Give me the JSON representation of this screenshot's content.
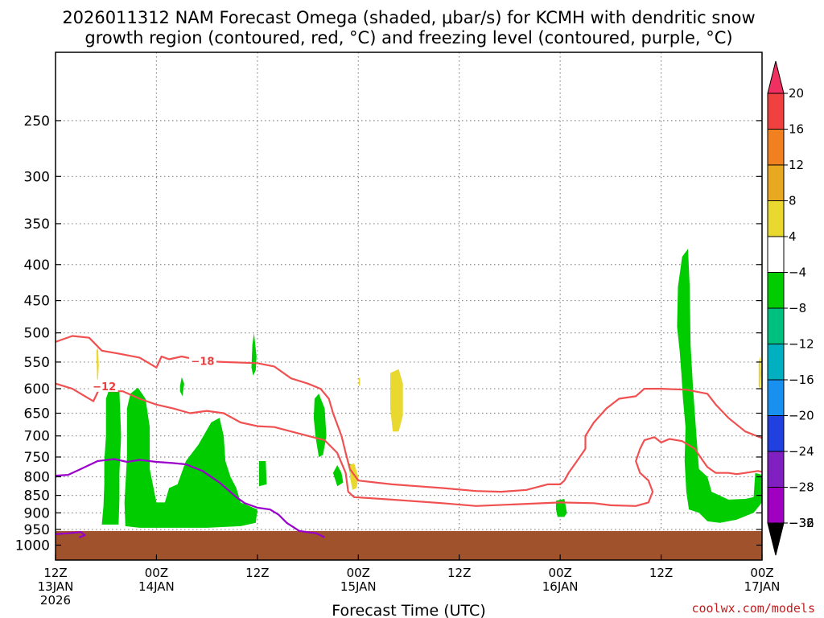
{
  "title": {
    "line1": "2026011312 NAM Forecast Omega (shaded, μbar/s) for KCMH with dendritic snow",
    "line2": "growth region (contoured, red, °C) and freezing level (contoured, purple, °C)"
  },
  "credit": "coolwx.com/models",
  "colors": {
    "omega_up": "#00cc00",
    "omega_down": "#e8d830",
    "dgz": "#f05050",
    "freezing": "#9a00cc",
    "ground": "#a0522d",
    "grid": "#888888"
  },
  "chart_data": {
    "type": "heatmap",
    "xlabel": "Forecast Time (UTC)",
    "ylabel": "",
    "x_range_hours": [
      0,
      84
    ],
    "y_range_hPa": [
      1050,
      200
    ],
    "y_ticks": [
      {
        "v": 250,
        "label": "250"
      },
      {
        "v": 300,
        "label": "300"
      },
      {
        "v": 350,
        "label": "350"
      },
      {
        "v": 400,
        "label": "400"
      },
      {
        "v": 450,
        "label": "450"
      },
      {
        "v": 500,
        "label": "500"
      },
      {
        "v": 550,
        "label": "550"
      },
      {
        "v": 600,
        "label": "600"
      },
      {
        "v": 650,
        "label": "650"
      },
      {
        "v": 700,
        "label": "700"
      },
      {
        "v": 750,
        "label": "750"
      },
      {
        "v": 800,
        "label": "800"
      },
      {
        "v": 850,
        "label": "850"
      },
      {
        "v": 900,
        "label": "900"
      },
      {
        "v": 950,
        "label": "950"
      },
      {
        "v": 1000,
        "label": "1000"
      }
    ],
    "x_ticks": [
      {
        "h": 0,
        "l1": "12Z",
        "l2": "13JAN",
        "l3": "2026"
      },
      {
        "h": 12,
        "l1": "00Z",
        "l2": "14JAN",
        "l3": ""
      },
      {
        "h": 24,
        "l1": "12Z",
        "l2": "",
        "l3": ""
      },
      {
        "h": 36,
        "l1": "00Z",
        "l2": "15JAN",
        "l3": ""
      },
      {
        "h": 48,
        "l1": "12Z",
        "l2": "",
        "l3": ""
      },
      {
        "h": 60,
        "l1": "00Z",
        "l2": "16JAN",
        "l3": ""
      },
      {
        "h": 72,
        "l1": "12Z",
        "l2": "",
        "l3": ""
      },
      {
        "h": 84,
        "l1": "00Z",
        "l2": "17JAN",
        "l3": ""
      }
    ],
    "colorbar": [
      {
        "label": "20",
        "color": "#f03060"
      },
      {
        "label": "16",
        "color": "#f04040"
      },
      {
        "label": "12",
        "color": "#f08020"
      },
      {
        "label": "8",
        "color": "#e8a820"
      },
      {
        "label": "4",
        "color": "#e8d830"
      },
      {
        "label": "−4",
        "color": "#ffffff"
      },
      {
        "label": "−8",
        "color": "#00cc00"
      },
      {
        "label": "−12",
        "color": "#00c080"
      },
      {
        "label": "−16",
        "color": "#00b0c0"
      },
      {
        "label": "−20",
        "color": "#1890f0"
      },
      {
        "label": "−24",
        "color": "#2040e0"
      },
      {
        "label": "−28",
        "color": "#8020c0"
      },
      {
        "label": "−32",
        "color": "#a000c0"
      },
      {
        "label": "−36",
        "color": "#a0a0a0"
      }
    ],
    "omega_regions": [
      {
        "value": -5,
        "points": [
          [
            5.5,
            935
          ],
          [
            5.7,
            880
          ],
          [
            5.8,
            820
          ],
          [
            5.8,
            760
          ],
          [
            6.0,
            700
          ],
          [
            6.0,
            620
          ],
          [
            6.4,
            600
          ],
          [
            7.6,
            605
          ],
          [
            7.8,
            700
          ],
          [
            7.6,
            790
          ],
          [
            7.6,
            860
          ],
          [
            7.5,
            935
          ]
        ]
      },
      {
        "value": -5,
        "points": [
          [
            8.3,
            940
          ],
          [
            8.2,
            870
          ],
          [
            8.5,
            750
          ],
          [
            8.5,
            640
          ],
          [
            8.9,
            610
          ],
          [
            9.8,
            598
          ],
          [
            10.7,
            620
          ],
          [
            11.2,
            680
          ],
          [
            11.2,
            780
          ],
          [
            12.0,
            870
          ],
          [
            13.0,
            870
          ],
          [
            13.5,
            830
          ],
          [
            14.5,
            820
          ],
          [
            15.5,
            760
          ],
          [
            17.0,
            720
          ],
          [
            18.5,
            670
          ],
          [
            19.5,
            660
          ],
          [
            20.0,
            700
          ],
          [
            20.2,
            760
          ],
          [
            20.8,
            800
          ],
          [
            21.5,
            830
          ],
          [
            22.0,
            870
          ],
          [
            24.0,
            890
          ],
          [
            23.8,
            930
          ],
          [
            22.0,
            940
          ],
          [
            18.0,
            945
          ],
          [
            14.0,
            945
          ],
          [
            10.0,
            945
          ]
        ]
      },
      {
        "value": -5,
        "points": [
          [
            14.8,
            595
          ],
          [
            15.0,
            578
          ],
          [
            15.3,
            590
          ],
          [
            15.1,
            615
          ],
          [
            14.8,
            605
          ]
        ]
      },
      {
        "value": -5,
        "points": [
          [
            23.3,
            560
          ],
          [
            23.4,
            520
          ],
          [
            23.6,
            500
          ],
          [
            23.9,
            540
          ],
          [
            23.8,
            565
          ],
          [
            23.5,
            575
          ]
        ]
      },
      {
        "value": -5,
        "points": [
          [
            24.2,
            760
          ],
          [
            25.0,
            760
          ],
          [
            25.1,
            820
          ],
          [
            24.2,
            825
          ]
        ]
      },
      {
        "value": -5,
        "points": [
          [
            30.8,
            620
          ],
          [
            31.3,
            610
          ],
          [
            32.0,
            640
          ],
          [
            32.2,
            700
          ],
          [
            31.8,
            745
          ],
          [
            31.3,
            750
          ],
          [
            30.9,
            700
          ],
          [
            30.7,
            660
          ]
        ]
      },
      {
        "value": -5,
        "points": [
          [
            33.0,
            790
          ],
          [
            33.5,
            770
          ],
          [
            34.0,
            790
          ],
          [
            34.2,
            815
          ],
          [
            33.5,
            825
          ]
        ]
      },
      {
        "value": -5,
        "points": [
          [
            34.8,
            765
          ],
          [
            35.3,
            770
          ],
          [
            35.0,
            790
          ]
        ]
      },
      {
        "value": -5,
        "points": [
          [
            59.5,
            865
          ],
          [
            60.5,
            860
          ],
          [
            60.8,
            900
          ],
          [
            60.5,
            912
          ],
          [
            59.7,
            912
          ],
          [
            59.5,
            890
          ]
        ]
      },
      {
        "value": -5,
        "points": [
          [
            73.9,
            490
          ],
          [
            74.0,
            430
          ],
          [
            74.5,
            390
          ],
          [
            75.2,
            380
          ],
          [
            75.4,
            430
          ],
          [
            75.5,
            520
          ],
          [
            75.8,
            600
          ],
          [
            76.2,
            700
          ],
          [
            76.5,
            780
          ],
          [
            77.5,
            800
          ],
          [
            78.0,
            840
          ],
          [
            80,
            862
          ],
          [
            82,
            860
          ],
          [
            83,
            855
          ],
          [
            83.2,
            790
          ],
          [
            84,
            795
          ],
          [
            84,
            870
          ],
          [
            83,
            900
          ],
          [
            81,
            920
          ],
          [
            79,
            930
          ],
          [
            77.5,
            925
          ],
          [
            76.5,
            900
          ],
          [
            75.3,
            890
          ],
          [
            75.0,
            840
          ],
          [
            74.8,
            760
          ],
          [
            74.9,
            680
          ],
          [
            74.6,
            620
          ],
          [
            74.4,
            570
          ],
          [
            74.2,
            530
          ]
        ]
      },
      {
        "value": 5,
        "points": [
          [
            4.85,
            530
          ],
          [
            5.05,
            525
          ],
          [
            5.15,
            555
          ],
          [
            5.05,
            582
          ],
          [
            4.95,
            582
          ]
        ]
      },
      {
        "value": 5,
        "points": [
          [
            39.8,
            570
          ],
          [
            40.8,
            563
          ],
          [
            41.3,
            590
          ],
          [
            41.3,
            655
          ],
          [
            40.8,
            690
          ],
          [
            40.1,
            690
          ],
          [
            39.8,
            640
          ]
        ]
      },
      {
        "value": 5,
        "points": [
          [
            35.0,
            770
          ],
          [
            35.5,
            765
          ],
          [
            36.0,
            800
          ],
          [
            35.8,
            830
          ],
          [
            35.3,
            835
          ],
          [
            35.0,
            800
          ]
        ]
      },
      {
        "value": 5,
        "points": [
          [
            83.6,
            550
          ],
          [
            83.8,
            540
          ],
          [
            83.9,
            570
          ],
          [
            83.8,
            600
          ],
          [
            83.6,
            595
          ]
        ]
      },
      {
        "value": 5,
        "points": [
          [
            36.05,
            580
          ],
          [
            36.2,
            578
          ],
          [
            36.2,
            595
          ],
          [
            36.05,
            593
          ]
        ]
      }
    ],
    "ground_top_hPa": 955,
    "contours": [
      {
        "value": -18,
        "label": "−18",
        "color": "dgz",
        "label_at": [
          17.5,
          548
        ],
        "points": [
          [
            0,
            515
          ],
          [
            2.0,
            505
          ],
          [
            4.0,
            508
          ],
          [
            5.5,
            530
          ],
          [
            7.5,
            535
          ],
          [
            10,
            542
          ],
          [
            12,
            560
          ],
          [
            12.6,
            540
          ],
          [
            13.5,
            545
          ],
          [
            15,
            540
          ],
          [
            17.5,
            548
          ],
          [
            20,
            550
          ],
          [
            24,
            552
          ],
          [
            26,
            558
          ],
          [
            28,
            580
          ],
          [
            30,
            590
          ],
          [
            31.5,
            600
          ],
          [
            32.5,
            620
          ],
          [
            33,
            650
          ],
          [
            34,
            700
          ],
          [
            34.5,
            740
          ],
          [
            35,
            780
          ],
          [
            36,
            810
          ],
          [
            40,
            820
          ],
          [
            46,
            830
          ],
          [
            50,
            838
          ],
          [
            53,
            840
          ],
          [
            56,
            835
          ],
          [
            58.5,
            820
          ],
          [
            60,
            820
          ],
          [
            60.5,
            810
          ],
          [
            61,
            790
          ],
          [
            62,
            760
          ],
          [
            63,
            730
          ],
          [
            63,
            700
          ],
          [
            64,
            670
          ],
          [
            65.5,
            640
          ],
          [
            67,
            620
          ],
          [
            69,
            615
          ],
          [
            70,
            600
          ],
          [
            72,
            600
          ],
          [
            75,
            602
          ],
          [
            77.5,
            610
          ],
          [
            78.5,
            632
          ],
          [
            80,
            660
          ],
          [
            82,
            690
          ],
          [
            84,
            705
          ]
        ]
      },
      {
        "value": -12,
        "label": "−12",
        "color": "dgz",
        "label_at": [
          5.8,
          595
        ],
        "points": [
          [
            0,
            590
          ],
          [
            2,
            600
          ],
          [
            3.5,
            615
          ],
          [
            4.5,
            625
          ],
          [
            5.2,
            600
          ],
          [
            6.5,
            605
          ],
          [
            8,
            605
          ],
          [
            10,
            620
          ],
          [
            12,
            632
          ],
          [
            14,
            640
          ],
          [
            16,
            650
          ],
          [
            18,
            645
          ],
          [
            20,
            650
          ],
          [
            22,
            670
          ],
          [
            24,
            678
          ],
          [
            26,
            680
          ],
          [
            28,
            690
          ],
          [
            30,
            700
          ],
          [
            32,
            710
          ],
          [
            33.5,
            740
          ],
          [
            34.5,
            790
          ],
          [
            34.8,
            840
          ],
          [
            35.5,
            855
          ],
          [
            40,
            862
          ],
          [
            46,
            872
          ],
          [
            50,
            880
          ],
          [
            55,
            875
          ],
          [
            60,
            870
          ],
          [
            64,
            872
          ],
          [
            66,
            878
          ],
          [
            69,
            880
          ],
          [
            70.5,
            870
          ],
          [
            71,
            840
          ],
          [
            70.5,
            810
          ],
          [
            69.5,
            790
          ],
          [
            69,
            760
          ],
          [
            69.5,
            730
          ],
          [
            70,
            710
          ],
          [
            71.2,
            703
          ],
          [
            72,
            715
          ],
          [
            73,
            707
          ],
          [
            74.5,
            712
          ],
          [
            76,
            730
          ],
          [
            77,
            760
          ],
          [
            77.5,
            775
          ],
          [
            78.5,
            790
          ],
          [
            80,
            790
          ],
          [
            81,
            793
          ],
          [
            82,
            790
          ],
          [
            83.5,
            785
          ],
          [
            84,
            787
          ]
        ]
      },
      {
        "value": 0,
        "label": "",
        "color": "freezing",
        "points": [
          [
            0,
            797
          ],
          [
            1.5,
            795
          ],
          [
            3,
            780
          ],
          [
            5,
            760
          ],
          [
            7,
            755
          ],
          [
            8.5,
            762
          ],
          [
            10,
            757
          ],
          [
            12,
            762
          ],
          [
            14,
            765
          ],
          [
            15.5,
            768
          ],
          [
            17.5,
            785
          ],
          [
            19.5,
            815
          ],
          [
            21.5,
            855
          ],
          [
            22.5,
            872
          ],
          [
            24,
            885
          ],
          [
            25.5,
            890
          ],
          [
            26.5,
            905
          ],
          [
            27.5,
            930
          ],
          [
            29,
            955
          ],
          [
            31,
            962
          ],
          [
            32,
            975
          ]
        ]
      },
      {
        "value": 0,
        "label": "",
        "color": "freezing",
        "points": [
          [
            0,
            965
          ],
          [
            1.5,
            962
          ],
          [
            3,
            958
          ],
          [
            3.5,
            968
          ],
          [
            2.8,
            975
          ]
        ]
      }
    ]
  }
}
